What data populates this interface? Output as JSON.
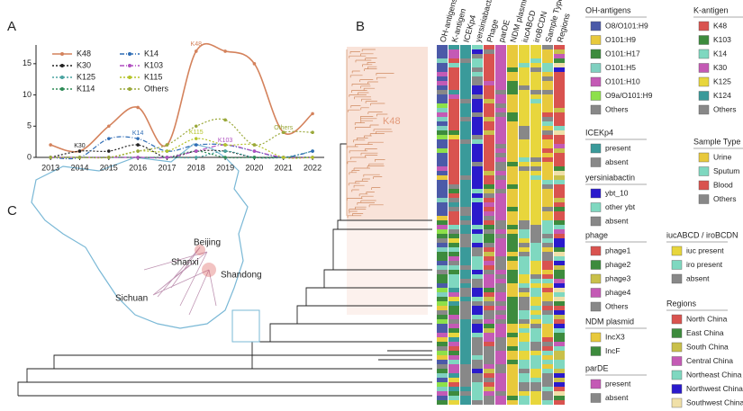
{
  "panel_labels": [
    "A",
    "B",
    "C"
  ],
  "chart_data": {
    "type": "line",
    "x": [
      2013,
      2014,
      2015,
      2016,
      2017,
      2018,
      2019,
      2020,
      2021,
      2022
    ],
    "xlim": [
      2012.5,
      2022.4
    ],
    "ylim": [
      0,
      18
    ],
    "yticks": [
      0,
      5,
      10,
      15
    ],
    "series": [
      {
        "name": "K48",
        "color": "#d4825c",
        "dash": "",
        "values": [
          2,
          1,
          5,
          8,
          2,
          17,
          17,
          15,
          4,
          7
        ]
      },
      {
        "name": "K30",
        "color": "#222222",
        "dash": "2,2",
        "values": [
          0,
          1,
          1,
          2,
          0,
          1,
          1,
          0,
          0,
          0
        ]
      },
      {
        "name": "K125",
        "color": "#4aa3a0",
        "dash": "2,2",
        "values": [
          0,
          0,
          0,
          0,
          0,
          0,
          1,
          0,
          0,
          1
        ]
      },
      {
        "name": "K114",
        "color": "#2e8b57",
        "dash": "2,2",
        "values": [
          0,
          0,
          0,
          0,
          0,
          1,
          0,
          0,
          0,
          0
        ]
      },
      {
        "name": "K14",
        "color": "#2f6db5",
        "dash": "5,2,1,2",
        "values": [
          0,
          0,
          3,
          3,
          1,
          2,
          2,
          1,
          0,
          1
        ]
      },
      {
        "name": "K103",
        "color": "#b04fc0",
        "dash": "5,2,1,2",
        "values": [
          0,
          0,
          0,
          0,
          0,
          1,
          2,
          1,
          0,
          0
        ]
      },
      {
        "name": "K115",
        "color": "#b5c42a",
        "dash": "2,2",
        "values": [
          0,
          0,
          0,
          1,
          1,
          3,
          2,
          2,
          0,
          0
        ]
      },
      {
        "name": "Others",
        "color": "#9aa83a",
        "dash": "2,2",
        "values": [
          0,
          0,
          0,
          1,
          2,
          5,
          6,
          2,
          4,
          4
        ]
      }
    ]
  },
  "tree_label": "K48",
  "heatmap_columns": [
    "OH-antigens",
    "K-antigen",
    "ICEKp4",
    "yersiniabactin",
    "Phage",
    "parDE",
    "NDM plasmid",
    "iucABCD",
    "iroBCDN",
    "Sample Type",
    "Regions"
  ],
  "legends": [
    {
      "title": "OH-antigens",
      "items": [
        [
          "O8/O101:H9",
          "#4b5aa8"
        ],
        [
          "O101:H9",
          "#e8c93c"
        ],
        [
          "O101:H17",
          "#3d8b3d"
        ],
        [
          "O101:H5",
          "#7fd0c0"
        ],
        [
          "O101:H10",
          "#c45ab5"
        ],
        [
          "O9a/O101:H9",
          "#8de04a"
        ],
        [
          "Others",
          "#888888"
        ]
      ]
    },
    {
      "title": "ICEKp4",
      "items": [
        [
          "present",
          "#3a9a9a"
        ],
        [
          "absent",
          "#888888"
        ]
      ]
    },
    {
      "title": "yersiniabactin",
      "items": [
        [
          "ybt_10",
          "#2a1acc"
        ],
        [
          "other ybt",
          "#7fd8c0"
        ],
        [
          "absent",
          "#888888"
        ]
      ]
    },
    {
      "title": "phage",
      "items": [
        [
          "phage1",
          "#d9534f"
        ],
        [
          "phage2",
          "#3d8b3d"
        ],
        [
          "phage3",
          "#c9c04a"
        ],
        [
          "phage4",
          "#c45ab5"
        ],
        [
          "Others",
          "#888888"
        ]
      ]
    },
    {
      "title": "NDM plasmid",
      "items": [
        [
          "IncX3",
          "#e8c93c"
        ],
        [
          "IncF",
          "#3d8b3d"
        ]
      ]
    },
    {
      "title": "parDE",
      "items": [
        [
          "present",
          "#c45ab5"
        ],
        [
          "absent",
          "#888888"
        ]
      ]
    },
    {
      "title": "K-antigen",
      "items": [
        [
          "K48",
          "#d9534f"
        ],
        [
          "K103",
          "#3d8b3d"
        ],
        [
          "K14",
          "#7fd8c0"
        ],
        [
          "K30",
          "#c45ab5"
        ],
        [
          "K125",
          "#e8d63c"
        ],
        [
          "K124",
          "#3a9a9a"
        ],
        [
          "Others",
          "#888888"
        ]
      ]
    },
    {
      "title": "Sample Type",
      "items": [
        [
          "Urine",
          "#e8c93c"
        ],
        [
          "Sputum",
          "#7fd8c0"
        ],
        [
          "Blood",
          "#d9534f"
        ],
        [
          "Others",
          "#888888"
        ]
      ]
    },
    {
      "title": "iucABCD / iroBCDN",
      "items": [
        [
          "iuc present",
          "#e8d63c"
        ],
        [
          "iro present",
          "#7fd8c0"
        ],
        [
          "absent",
          "#888888"
        ]
      ]
    },
    {
      "title": "Regions",
      "items": [
        [
          "North China",
          "#d9534f"
        ],
        [
          "East China",
          "#3d8b3d"
        ],
        [
          "South China",
          "#c9c04a"
        ],
        [
          "Central China",
          "#c45ab5"
        ],
        [
          "Northeast China",
          "#7fd8c0"
        ],
        [
          "Northwest China",
          "#2a1acc"
        ],
        [
          "Southwest China",
          "#f0e0a8"
        ]
      ]
    }
  ],
  "map_labels": [
    "Beijing",
    "Shanxi",
    "Shandong",
    "Sichuan"
  ]
}
